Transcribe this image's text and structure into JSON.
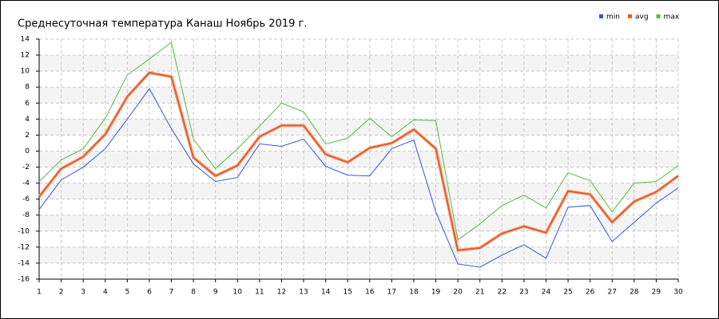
{
  "chart_data": {
    "type": "line",
    "title": "Среднесуточная температура Канаш  Ноябрь 2019 г.",
    "x": [
      1,
      2,
      3,
      4,
      5,
      6,
      7,
      8,
      9,
      10,
      11,
      12,
      13,
      14,
      15,
      16,
      17,
      18,
      19,
      20,
      21,
      22,
      23,
      24,
      25,
      26,
      27,
      28,
      29,
      30
    ],
    "series": [
      {
        "name": "min",
        "color": "#3355dd",
        "values": [
          -7.3,
          -3.6,
          -2.0,
          0.3,
          4.0,
          7.8,
          2.8,
          -1.6,
          -3.8,
          -3.3,
          0.9,
          0.6,
          1.5,
          -1.9,
          -3.0,
          -3.1,
          0.3,
          1.4,
          -7.6,
          -14.1,
          -14.5,
          -13.0,
          -11.7,
          -13.4,
          -7.0,
          -6.8,
          -11.3,
          -8.9,
          -6.5,
          -4.6
        ]
      },
      {
        "name": "avg",
        "color": "#e85a2a",
        "values": [
          -5.7,
          -2.2,
          -0.7,
          2.1,
          6.8,
          9.8,
          9.3,
          -0.8,
          -3.1,
          -1.8,
          1.8,
          3.2,
          3.2,
          -0.4,
          -1.4,
          0.4,
          1.0,
          2.7,
          0.3,
          -12.4,
          -12.1,
          -10.3,
          -9.4,
          -10.2,
          -5.0,
          -5.4,
          -8.9,
          -6.3,
          -5.1,
          -3.1
        ]
      },
      {
        "name": "max",
        "color": "#55bb44",
        "values": [
          -3.8,
          -1.1,
          0.3,
          4.1,
          9.5,
          11.5,
          13.6,
          1.5,
          -2.2,
          0.3,
          3.1,
          6.0,
          4.9,
          0.9,
          1.6,
          4.1,
          1.8,
          3.9,
          3.8,
          -11.1,
          -9.1,
          -6.8,
          -5.5,
          -7.1,
          -2.7,
          -3.7,
          -7.6,
          -4.0,
          -3.8,
          -1.8
        ]
      }
    ],
    "xlim": [
      1,
      30
    ],
    "xticks": [
      1,
      2,
      3,
      4,
      5,
      6,
      7,
      8,
      9,
      10,
      11,
      12,
      13,
      14,
      15,
      16,
      17,
      18,
      19,
      20,
      21,
      22,
      23,
      24,
      25,
      26,
      27,
      28,
      29,
      30
    ],
    "ylim": [
      -16,
      14
    ],
    "yticks": [
      -16,
      -14,
      -12,
      -10,
      -8,
      -6,
      -4,
      -2,
      0,
      2,
      4,
      6,
      8,
      10,
      12,
      14
    ],
    "grid": true,
    "legend": "top-right"
  }
}
